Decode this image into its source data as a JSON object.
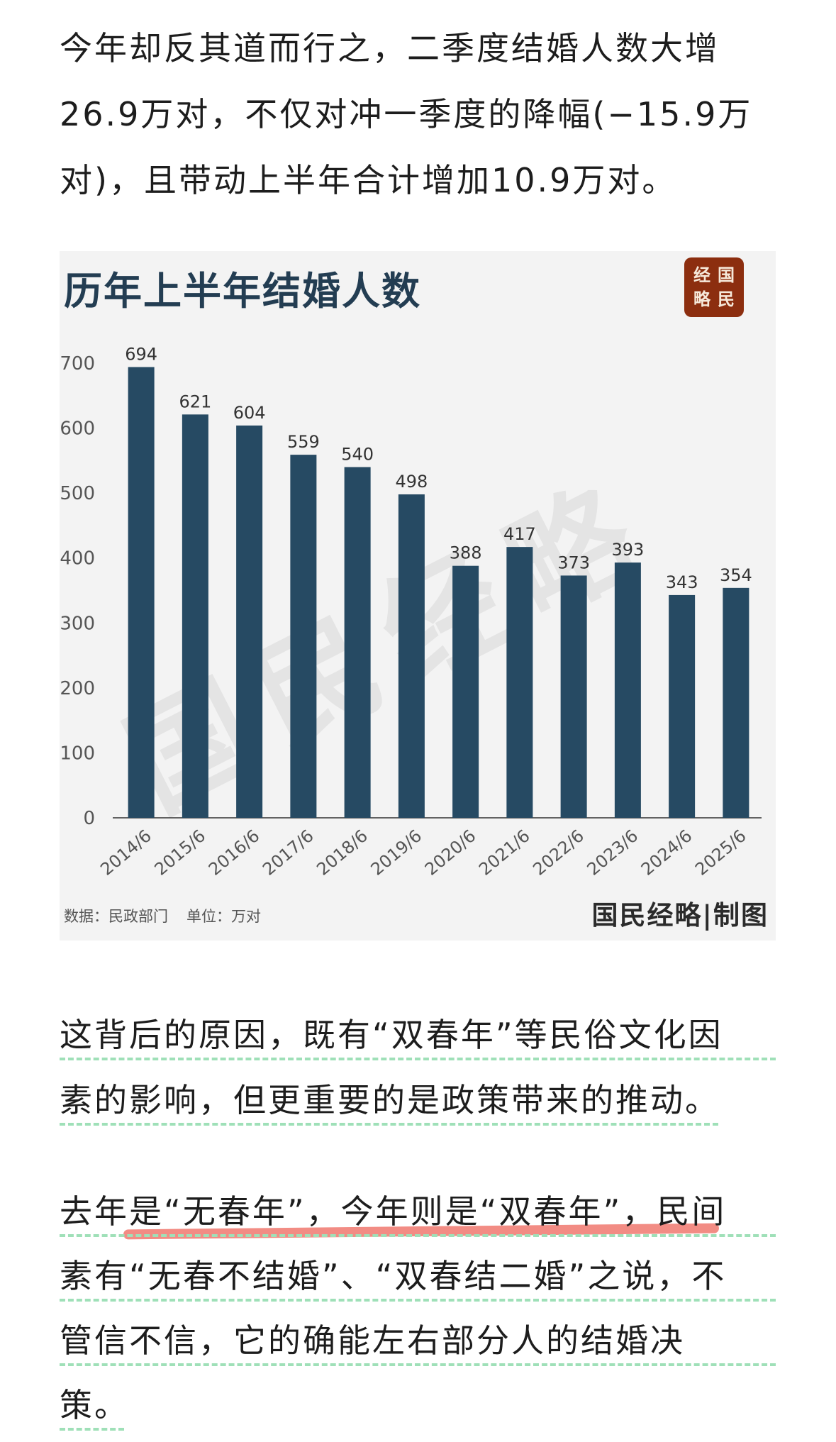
{
  "paragraph_1": {
    "lines": [
      "今年却反其道而行之，二季度结婚人数大增",
      "26.9万对，不仅对冲一季度的降幅(−15.9万",
      "对)，且带动上半年合计增加10.9万对。"
    ]
  },
  "chart_card": {
    "logo": {
      "chars": [
        "经",
        "国",
        "略",
        "民"
      ]
    },
    "watermark": "国民经略",
    "footnote": {
      "source": "数据：民政部门",
      "unit": "单位：万对"
    },
    "credit": "国民经略|制图"
  },
  "chart_data": {
    "type": "bar",
    "title": "历年上半年结婚人数",
    "categories": [
      "2014/6",
      "2015/6",
      "2016/6",
      "2017/6",
      "2018/6",
      "2019/6",
      "2020/6",
      "2021/6",
      "2022/6",
      "2023/6",
      "2024/6",
      "2025/6"
    ],
    "values": [
      694,
      621,
      604,
      559,
      540,
      498,
      388,
      417,
      373,
      393,
      343,
      354
    ],
    "yticks": [
      0,
      100,
      200,
      300,
      400,
      500,
      600,
      700
    ],
    "ylim": [
      0,
      700
    ],
    "grid": false,
    "bar_color": "#264a63",
    "data_labels": true
  },
  "paragraph_2": {
    "lines": [
      "这背后的原因，既有“双春年”等民俗文化因",
      "素的影响，但更重要的是政策带来的推动。"
    ]
  },
  "paragraph_3": {
    "lines": [
      "去年是“无春年”，今年则是“双春年”，民间",
      "素有“无春不结婚”、“双春结二婚”之说，不",
      "管信不信，它的确能左右部分人的结婚决",
      "策。"
    ]
  },
  "colors": {
    "underline_dashed": "#9fe0b8",
    "highlight": "#f28c84",
    "title": "#233d52",
    "logo_bg": "#8c2e0f"
  }
}
